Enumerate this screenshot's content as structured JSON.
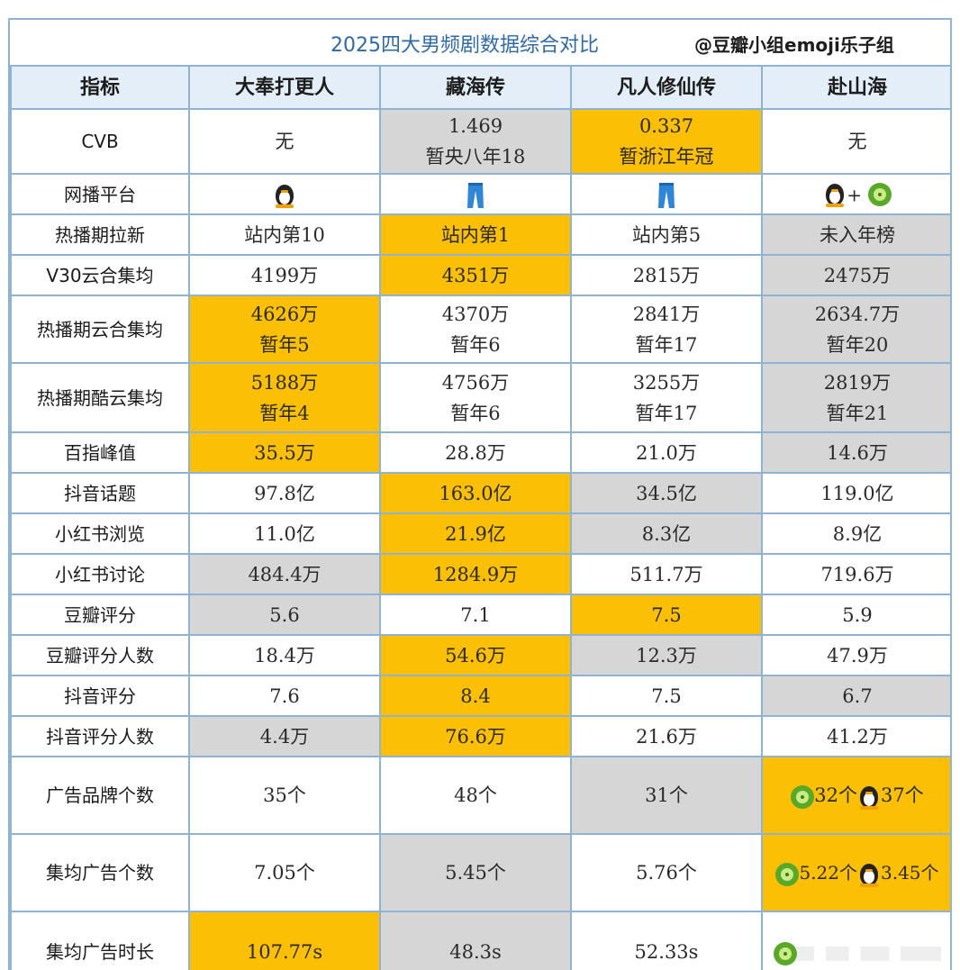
{
  "header": {
    "title": "2025四大男频剧数据综合对比",
    "handle": "@豆瓣小组emoji乐子组"
  },
  "columns": [
    "指标",
    "大奉打更人",
    "藏海传",
    "凡人修仙传",
    "赴山海"
  ],
  "rows": {
    "cvb": {
      "label": "CVB",
      "c1": "无",
      "c2a": "1.469",
      "c2b": "暂央八年18",
      "c3a": "0.337",
      "c3b": "暂浙江年冠",
      "c4": "无"
    },
    "platform": {
      "label": "网播平台",
      "c1_icon": "penguin-icon",
      "c2_icon": "pants-icon",
      "c3_icon": "pants-icon",
      "c4_icons": [
        "penguin-icon",
        "kiwi-icon"
      ],
      "plus": "+"
    },
    "new_users": {
      "label": "热播期拉新",
      "c1": "站内第10",
      "c2": "站内第1",
      "c3": "站内第5",
      "c4": "未入年榜"
    },
    "v30": {
      "label": "V30云合集均",
      "c1": "4199万",
      "c2": "4351万",
      "c3": "2815万",
      "c4": "2475万"
    },
    "yunhe": {
      "label": "热播期云合集均",
      "c1a": "4626万",
      "c1b": "暂年5",
      "c2a": "4370万",
      "c2b": "暂年6",
      "c3a": "2841万",
      "c3b": "暂年17",
      "c4a": "2634.7万",
      "c4b": "暂年20"
    },
    "kuyun": {
      "label": "热播期酷云集均",
      "c1a": "5188万",
      "c1b": "暂年4",
      "c2a": "4756万",
      "c2b": "暂年6",
      "c3a": "3255万",
      "c3b": "暂年17",
      "c4a": "2819万",
      "c4b": "暂年21"
    },
    "baidu": {
      "label": "百指峰值",
      "c1": "35.5万",
      "c2": "28.8万",
      "c3": "21.0万",
      "c4": "14.6万"
    },
    "douyin_topic": {
      "label": "抖音话题",
      "c1": "97.8亿",
      "c2": "163.0亿",
      "c3": "34.5亿",
      "c4": "119.0亿"
    },
    "xhs_view": {
      "label": "小红书浏览",
      "c1": "11.0亿",
      "c2": "21.9亿",
      "c3": "8.3亿",
      "c4": "8.9亿"
    },
    "xhs_disc": {
      "label": "小红书讨论",
      "c1": "484.4万",
      "c2": "1284.9万",
      "c3": "511.7万",
      "c4": "719.6万"
    },
    "douban": {
      "label": "豆瓣评分",
      "c1": "5.6",
      "c2": "7.1",
      "c3": "7.5",
      "c4": "5.9"
    },
    "douban_n": {
      "label": "豆瓣评分人数",
      "c1": "18.4万",
      "c2": "54.6万",
      "c3": "12.3万",
      "c4": "47.9万"
    },
    "dy_score": {
      "label": "抖音评分",
      "c1": "7.6",
      "c2": "8.4",
      "c3": "7.5",
      "c4": "6.7"
    },
    "dy_n": {
      "label": "抖音评分人数",
      "c1": "4.4万",
      "c2": "76.6万",
      "c3": "21.6万",
      "c4": "41.2万"
    },
    "ad_brands": {
      "label": "广告品牌个数",
      "c1": "35个",
      "c2": "48个",
      "c3": "31个",
      "c4a": "32个",
      "c4b": "37个"
    },
    "ad_count": {
      "label": "集均广告个数",
      "c1": "7.05个",
      "c2": "5.45个",
      "c3": "5.76个",
      "c4a": "5.22个",
      "c4b": "3.45个"
    },
    "ad_time": {
      "label": "集均广告时长",
      "c1": "107.77s",
      "c2": "48.3s",
      "c3": "52.33s"
    }
  },
  "colors": {
    "highlight": "#fbbf05",
    "lowlight": "#d6d6d6",
    "grid": "#8fb3d4",
    "header_bg": "#e3eef8",
    "title": "#2e6aa8"
  }
}
